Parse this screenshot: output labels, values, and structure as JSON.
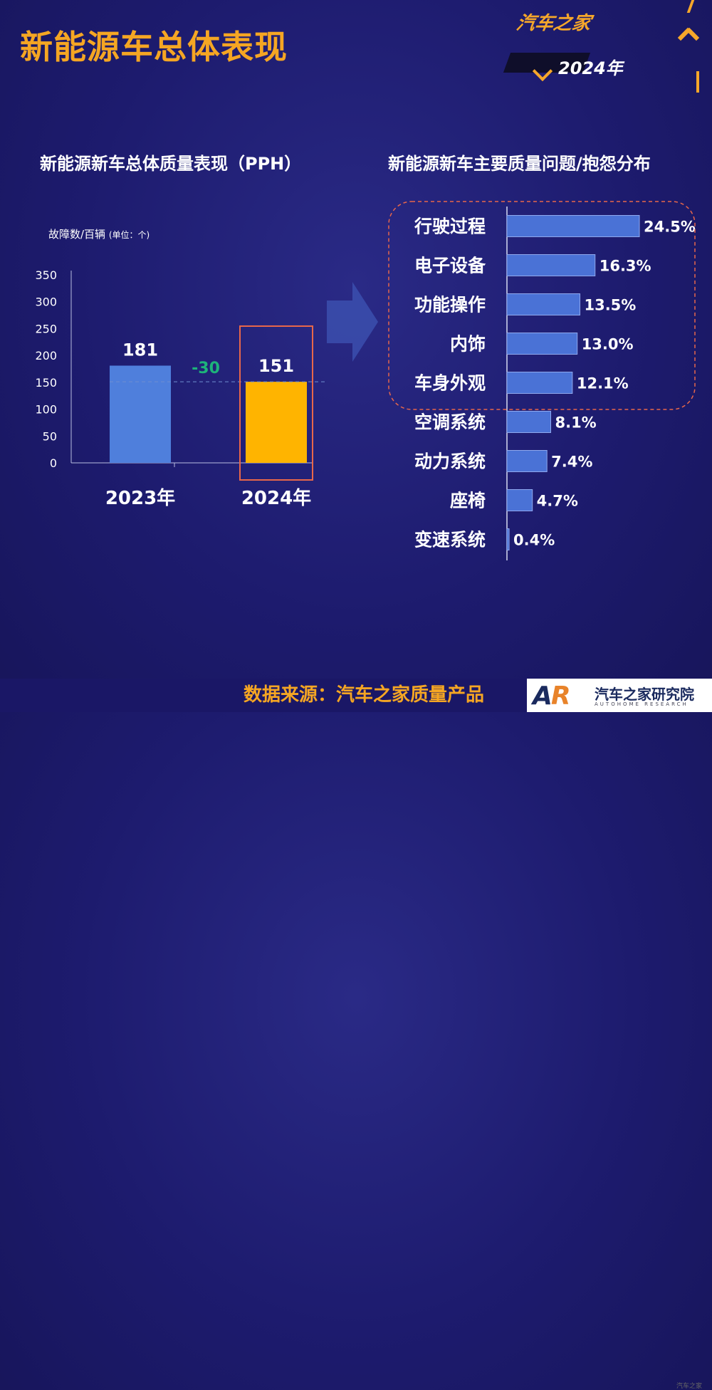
{
  "header": {
    "title": "新能源车总体表现",
    "brand_name": "汽车之家",
    "brand_year": "2024年"
  },
  "left_panel": {
    "title": "新能源新车总体质量表现（PPH）",
    "unit_main": "故障数/百辆",
    "unit_sub": "(单位：个)",
    "diff_label": "-30"
  },
  "right_panel": {
    "title": "新能源新车主要质量问题/抱怨分布"
  },
  "chart_data": [
    {
      "type": "bar",
      "categories": [
        "2023年",
        "2024年"
      ],
      "values": [
        181,
        151
      ],
      "ylim": [
        0,
        350
      ],
      "yticks": [
        0,
        50,
        100,
        150,
        200,
        250,
        300,
        350
      ],
      "ylabel": "故障数/百辆",
      "colors": [
        "#4f7fdc",
        "#ffb400"
      ],
      "annotation": "-30"
    },
    {
      "type": "bar",
      "orientation": "horizontal",
      "categories": [
        "行驶过程",
        "电子设备",
        "功能操作",
        "内饰",
        "车身外观",
        "空调系统",
        "动力系统",
        "座椅",
        "变速系统"
      ],
      "values": [
        24.5,
        16.3,
        13.5,
        13.0,
        12.1,
        8.1,
        7.4,
        4.7,
        0.4
      ],
      "value_labels": [
        "24.5%",
        "16.3%",
        "13.5%",
        "13.0%",
        "12.1%",
        "8.1%",
        "7.4%",
        "4.7%",
        "0.4%"
      ],
      "unit": "%",
      "color": "#4a72d6"
    }
  ],
  "footer": {
    "source": "数据来源：汽车之家质量产品",
    "org_logo": "AR",
    "org_name": "汽车之家研究院",
    "org_sub": "AUTOHOME RESEARCH",
    "watermark": "汽车之家"
  },
  "colors": {
    "accent": "#f5a623",
    "bar_2023": "#4f7fdc",
    "bar_2024": "#ffb400",
    "diff_green": "#1db37a",
    "highlight_box": "#e8674a",
    "hbar": "#4a72d6"
  }
}
